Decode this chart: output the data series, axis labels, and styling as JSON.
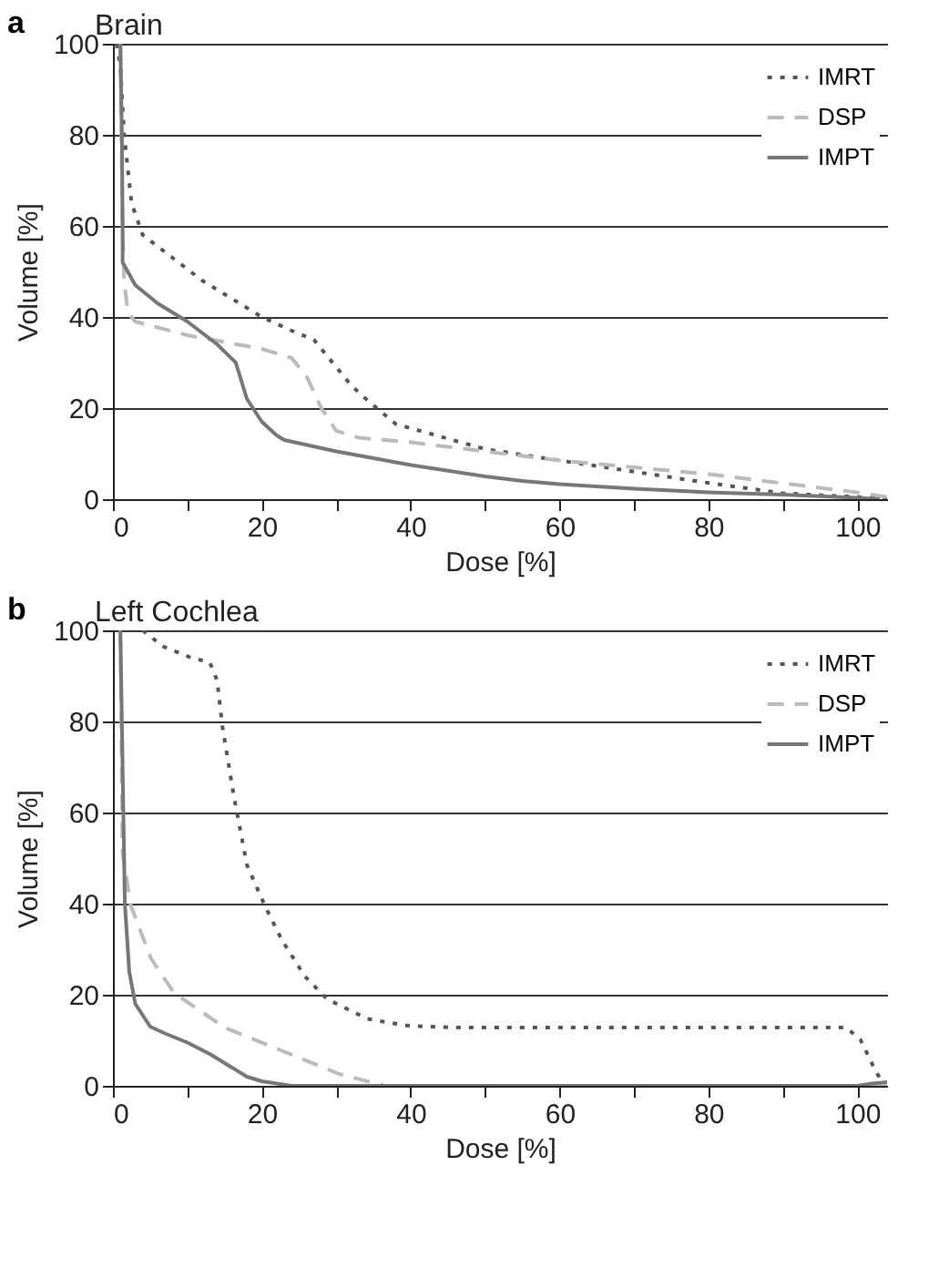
{
  "chart_data": [
    {
      "type": "line",
      "title": "Brain",
      "xlabel": "Dose [%]",
      "ylabel": "Volume [%]",
      "annotations": [
        "a"
      ],
      "xlim": [
        0,
        104
      ],
      "ylim": [
        0,
        100
      ],
      "xticks": [
        0,
        {
          "value": 10,
          "label": null
        },
        20,
        {
          "value": 30,
          "label": null
        },
        40,
        {
          "value": 50,
          "label": null
        },
        60,
        {
          "value": 70,
          "label": null
        },
        80,
        {
          "value": 90,
          "label": null
        },
        100
      ],
      "yticks": [
        0,
        20,
        40,
        60,
        80,
        100
      ],
      "grid": "y",
      "legend": "top right",
      "marker": "none",
      "series": [
        {
          "name": "IMRT",
          "color": "#555555",
          "line_style": "dotted",
          "x": [
            0.5,
            1,
            1.5,
            2.5,
            4,
            8,
            12,
            16,
            20,
            24,
            27,
            29,
            32,
            34,
            38,
            50,
            60,
            69,
            79,
            90,
            100,
            104
          ],
          "values": [
            100,
            95,
            80,
            65,
            58,
            53,
            48,
            44,
            40,
            37,
            35,
            31,
            25,
            22,
            16.5,
            11,
            8.5,
            6.3,
            3.8,
            1.3,
            0.5,
            0
          ]
        },
        {
          "name": "DSP",
          "color": "#bbbbbb",
          "line_style": "dashed",
          "x": [
            1,
            1.3,
            1.5,
            2,
            3,
            10,
            20,
            24,
            26,
            28,
            30,
            33,
            40,
            50,
            60,
            70,
            80,
            90,
            100,
            104
          ],
          "values": [
            100,
            60,
            48,
            41,
            39,
            36,
            33,
            31,
            27,
            20,
            15,
            13.5,
            12.5,
            10.5,
            8.5,
            7,
            5.5,
            3.5,
            1.5,
            0.5
          ]
        },
        {
          "name": "IMPT",
          "color": "#777777",
          "line_style": "solid",
          "x": [
            1,
            1.2,
            1.3,
            1.3,
            3,
            6,
            10,
            14,
            16.5,
            18,
            20,
            22,
            23,
            30,
            40,
            50,
            55,
            60,
            70,
            80,
            90,
            100,
            103
          ],
          "values": [
            100,
            80,
            60,
            52,
            47,
            43,
            39,
            34,
            30,
            22,
            17,
            14,
            13,
            10.5,
            7.5,
            5,
            4,
            3.3,
            2.3,
            1.5,
            1,
            0.3,
            0
          ]
        }
      ]
    },
    {
      "type": "line",
      "title": "Left Cochlea",
      "xlabel": "Dose [%]",
      "ylabel": "Volume [%]",
      "annotations": [
        "b"
      ],
      "xlim": [
        0,
        104
      ],
      "ylim": [
        0,
        100
      ],
      "xticks": [
        0,
        {
          "value": 10,
          "label": null
        },
        20,
        {
          "value": 30,
          "label": null
        },
        40,
        {
          "value": 50,
          "label": null
        },
        60,
        {
          "value": 70,
          "label": null
        },
        80,
        {
          "value": 90,
          "label": null
        },
        100
      ],
      "yticks": [
        0,
        20,
        40,
        60,
        80,
        100
      ],
      "grid": "y",
      "legend": "top right",
      "marker": "none",
      "series": [
        {
          "name": "IMRT",
          "color": "#555555",
          "line_style": "dotted",
          "x": [
            4,
            6.7,
            10.5,
            13,
            14,
            14.7,
            16.2,
            18,
            20.4,
            22.7,
            25.8,
            28.8,
            34.2,
            39.6,
            45.7,
            60,
            80,
            98.5,
            100.4,
            102.3,
            103.4
          ],
          "values": [
            100,
            96.5,
            94,
            93,
            89,
            79,
            64,
            48.5,
            39.6,
            32,
            24,
            19,
            14.7,
            13.2,
            12.8,
            12.8,
            12.8,
            12.8,
            10.2,
            3.8,
            0.6
          ]
        },
        {
          "name": "DSP",
          "color": "#bbbbbb",
          "line_style": "dashed",
          "x": [
            1,
            1.3,
            2.4,
            5.1,
            8.2,
            15,
            22.7,
            30.4,
            36.5,
            60,
            104
          ],
          "values": [
            100,
            51,
            39.6,
            28,
            20.4,
            12.8,
            7.7,
            2.6,
            0,
            0,
            0
          ]
        },
        {
          "name": "IMPT",
          "color": "#777777",
          "line_style": "solid",
          "x": [
            1,
            1.2,
            1.4,
            1.6,
            2.2,
            3,
            5,
            7,
            10,
            13,
            16,
            18,
            20,
            24,
            60,
            100,
            102,
            104
          ],
          "values": [
            100,
            80,
            60,
            40,
            25,
            18,
            13,
            11.5,
            9.5,
            7,
            4,
            2,
            1,
            0,
            0,
            0,
            0.5,
            0.8
          ]
        }
      ]
    }
  ]
}
